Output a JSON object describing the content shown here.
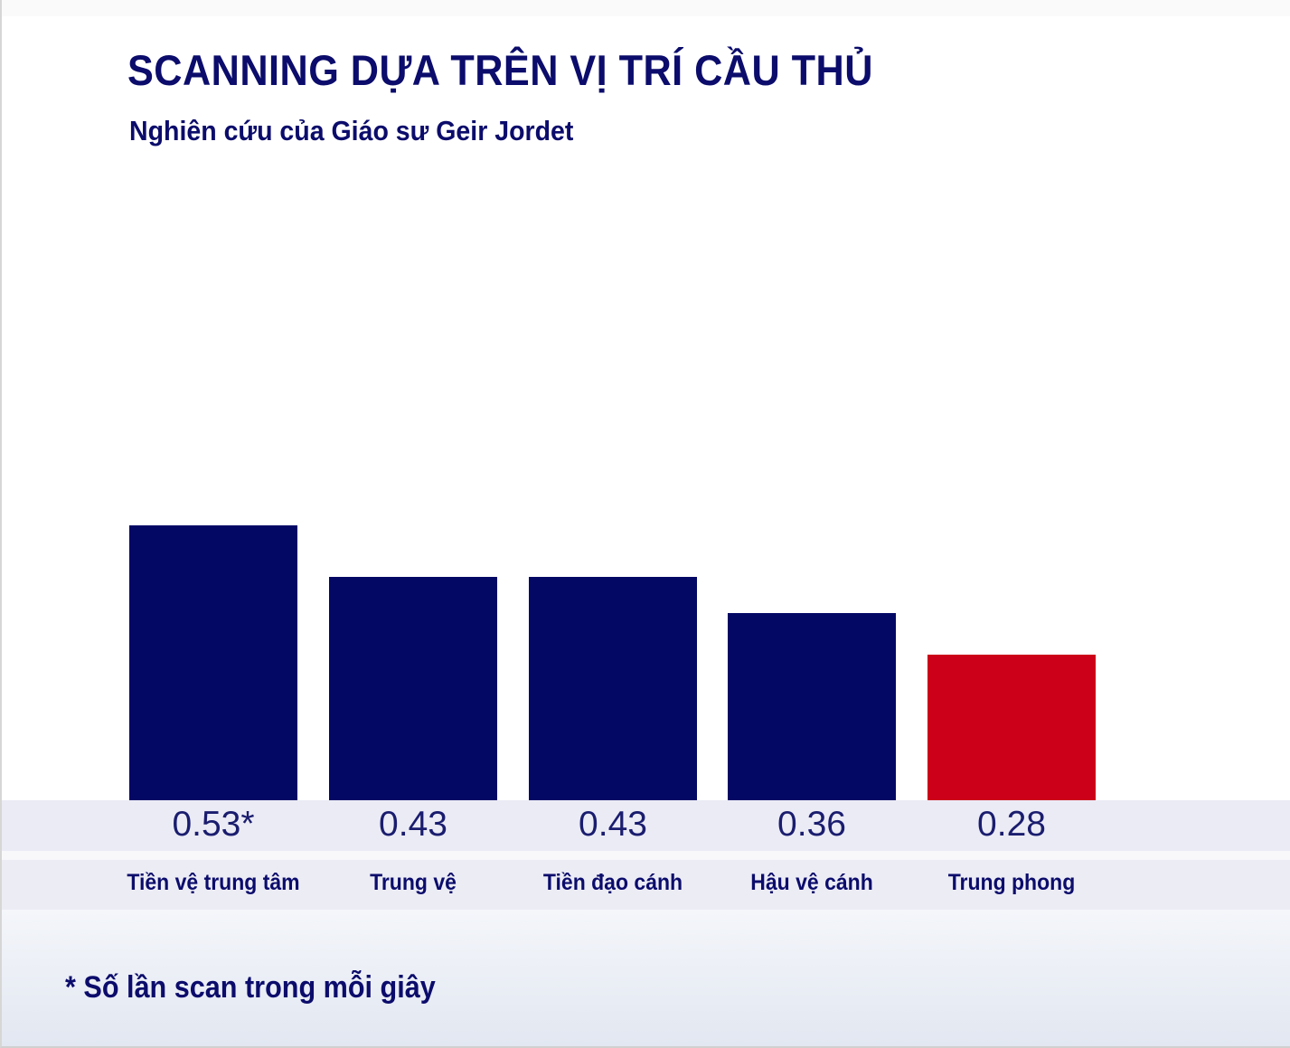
{
  "header": {
    "title": "SCANNING DỰA TRÊN VỊ TRÍ CẦU THỦ",
    "subtitle": "Nghiên cứu của Giáo sư Geir Jordet"
  },
  "footnote": "* Số lần scan trong mỗi giây",
  "colors": {
    "primary": "#030865",
    "highlight": "#cc0019",
    "text": "#0b0c6b"
  },
  "chart_data": {
    "type": "bar",
    "title": "SCANNING DỰA TRÊN VỊ TRÍ CẦU THỦ",
    "subtitle": "Nghiên cứu của Giáo sư Geir Jordet",
    "categories": [
      "Tiền vệ trung tâm",
      "Trung vệ",
      "Tiền đạo cánh",
      "Hậu vệ cánh",
      "Trung phong"
    ],
    "values": [
      0.53,
      0.43,
      0.43,
      0.36,
      0.28
    ],
    "value_labels": [
      "0.53*",
      "0.43",
      "0.43",
      "0.36",
      "0.28"
    ],
    "bar_colors": [
      "#030865",
      "#030865",
      "#030865",
      "#030865",
      "#cc0019"
    ],
    "xlabel": "",
    "ylabel": "Số lần scan trong mỗi giây",
    "ylim": [
      0,
      1.04
    ],
    "grid": false,
    "legend": "none",
    "annotation": "* Số lần scan trong mỗi giây"
  }
}
